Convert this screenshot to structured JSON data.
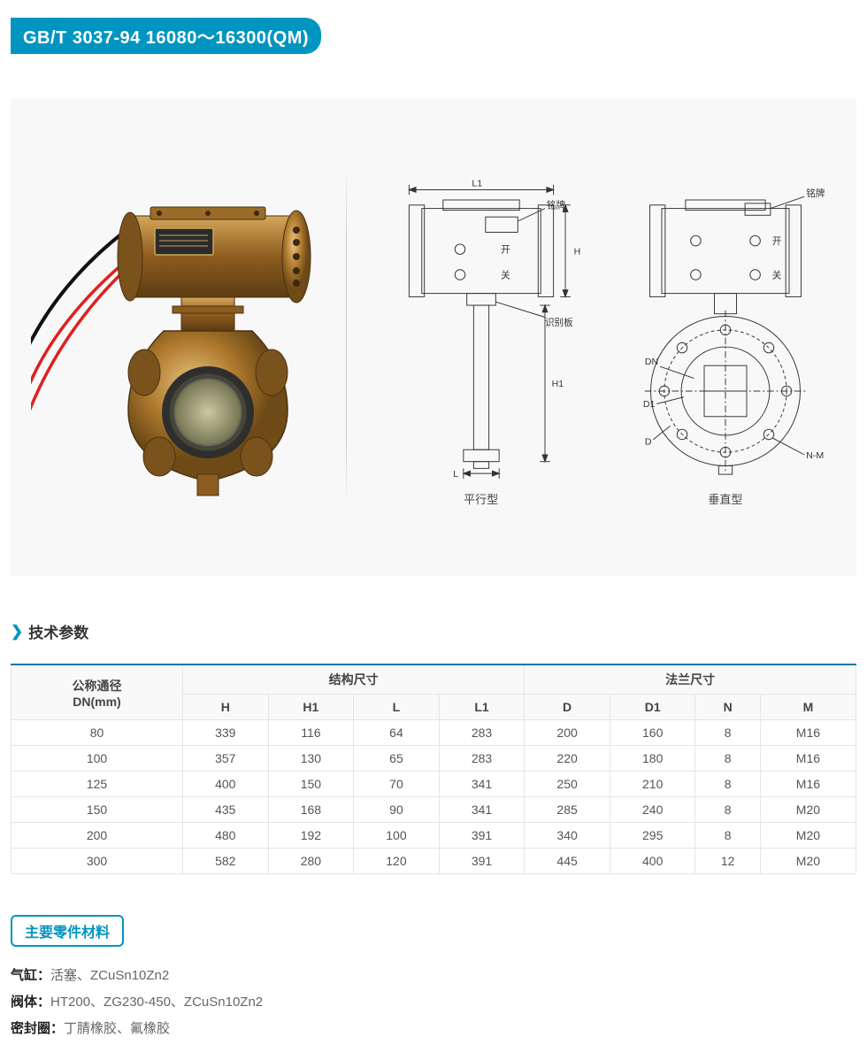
{
  "title_badge": "GB/T 3037-94  16080～16300(QM)",
  "diagrams": {
    "parallel": {
      "caption": "平行型",
      "labels": {
        "nameplate": "铭牌",
        "open": "开",
        "close": "关",
        "idplate": "识别板",
        "L1": "L1",
        "H": "H",
        "H1": "H1",
        "L": "L"
      }
    },
    "vertical": {
      "caption": "垂直型",
      "labels": {
        "nameplate": "铭牌",
        "open": "开",
        "close": "关",
        "DN": "DN",
        "D1": "D1",
        "D": "D",
        "NM": "N-M"
      }
    }
  },
  "sections": {
    "specs": "技术参数",
    "materials": "主要零件材料"
  },
  "table": {
    "group_headers": {
      "dn": "公称通径\nDN(mm)",
      "struct": "结构尺寸",
      "flange": "法兰尺寸"
    },
    "columns": [
      "H",
      "H1",
      "L",
      "L1",
      "D",
      "D1",
      "N",
      "M"
    ],
    "rows": [
      {
        "dn": "80",
        "vals": [
          "339",
          "116",
          "64",
          "283",
          "200",
          "160",
          "8",
          "M16"
        ]
      },
      {
        "dn": "100",
        "vals": [
          "357",
          "130",
          "65",
          "283",
          "220",
          "180",
          "8",
          "M16"
        ]
      },
      {
        "dn": "125",
        "vals": [
          "400",
          "150",
          "70",
          "341",
          "250",
          "210",
          "8",
          "M16"
        ]
      },
      {
        "dn": "150",
        "vals": [
          "435",
          "168",
          "90",
          "341",
          "285",
          "240",
          "8",
          "M20"
        ]
      },
      {
        "dn": "200",
        "vals": [
          "480",
          "192",
          "100",
          "391",
          "340",
          "295",
          "8",
          "M20"
        ]
      },
      {
        "dn": "300",
        "vals": [
          "582",
          "280",
          "120",
          "391",
          "445",
          "400",
          "12",
          "M20"
        ]
      }
    ]
  },
  "materials": [
    {
      "label": "气缸：",
      "value": "活塞、ZCuSn10Zn2"
    },
    {
      "label": "阀体：",
      "value": "HT200、ZG230-450、ZCuSn10Zn2"
    },
    {
      "label": "密封圈：",
      "value": "丁腈橡胶、氟橡胶"
    }
  ],
  "colors": {
    "brand": "#0095c1",
    "brass": "#b07b2e",
    "brassDark": "#6e4a17",
    "brassLight": "#d6a75a",
    "steel": "#888",
    "cable": "#e02020",
    "bg": "#f8f8f8",
    "line": "#333"
  }
}
